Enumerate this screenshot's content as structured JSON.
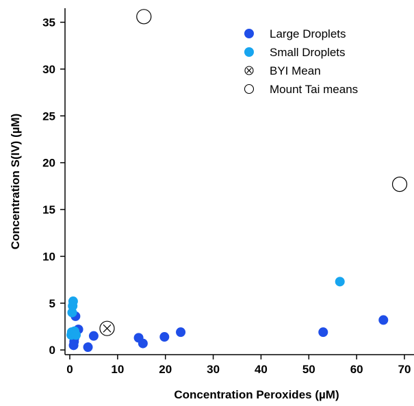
{
  "chart_data": {
    "type": "scatter",
    "title": "",
    "xlabel": "Concentration Peroxides (µM)",
    "ylabel": "Concentration S(IV) (µM)",
    "xlim": [
      -1,
      72
    ],
    "ylim": [
      -0.5,
      36.5
    ],
    "xticks": [
      0,
      10,
      20,
      30,
      40,
      50,
      60,
      70
    ],
    "yticks": [
      0,
      5,
      10,
      15,
      20,
      25,
      30,
      35
    ],
    "grid": false,
    "legend_position": "top-right",
    "series": [
      {
        "name": "Large Droplets",
        "color": "#1f4ee8",
        "marker": "filled-circle",
        "points": [
          [
            0.8,
            0.5
          ],
          [
            0.9,
            0.9
          ],
          [
            1.0,
            1.3
          ],
          [
            1.2,
            3.6
          ],
          [
            1.8,
            2.2
          ],
          [
            3.8,
            0.3
          ],
          [
            5.0,
            1.5
          ],
          [
            14.4,
            1.3
          ],
          [
            15.3,
            0.7
          ],
          [
            19.8,
            1.4
          ],
          [
            23.2,
            1.9
          ],
          [
            53.0,
            1.9
          ],
          [
            65.6,
            3.2
          ]
        ]
      },
      {
        "name": "Small Droplets",
        "color": "#17a5ef",
        "marker": "filled-circle",
        "points": [
          [
            0.3,
            1.6
          ],
          [
            0.4,
            1.9
          ],
          [
            0.5,
            4.0
          ],
          [
            0.6,
            4.7
          ],
          [
            0.7,
            5.2
          ],
          [
            0.8,
            1.7
          ],
          [
            1.0,
            2.0
          ],
          [
            1.3,
            1.6
          ],
          [
            56.5,
            7.3
          ]
        ]
      },
      {
        "name": "BYI Mean",
        "color": "#000000",
        "marker": "circle-x",
        "points": [
          [
            7.8,
            2.3
          ]
        ]
      },
      {
        "name": "Mount Tai means",
        "color": "#000000",
        "marker": "open-circle",
        "points": [
          [
            15.5,
            35.6
          ],
          [
            69.0,
            17.7
          ]
        ]
      }
    ]
  }
}
